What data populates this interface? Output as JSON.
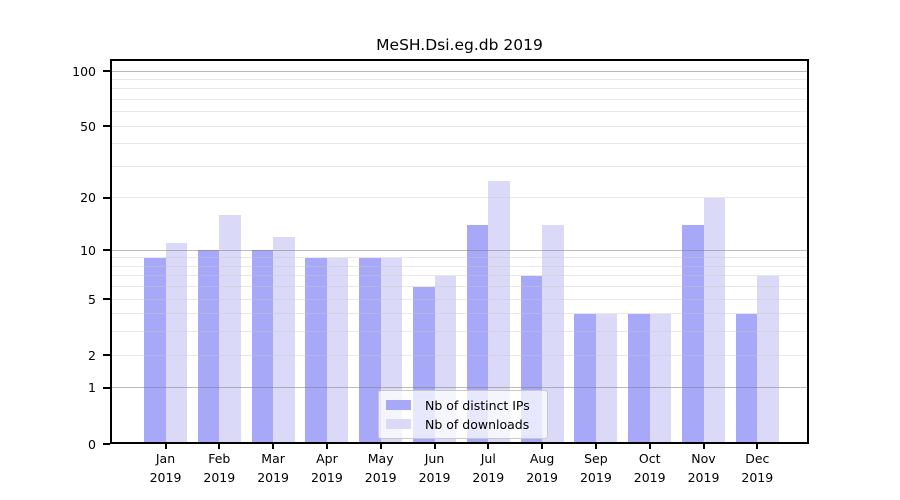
{
  "title": "MeSH.Dsi.eg.db 2019",
  "chart_data": {
    "type": "bar",
    "title": "MeSH.Dsi.eg.db 2019",
    "xlabel": "",
    "ylabel": "",
    "scale": "log1p",
    "ylim": [
      0,
      100
    ],
    "yticks": [
      0,
      1,
      2,
      5,
      10,
      20,
      50,
      100
    ],
    "grid": "on",
    "grid_minor_color": "rgba(200,200,200,0.42)",
    "grid_major_color": "rgba(120,120,120,0.50)",
    "legend_position": "bottom-center-inside",
    "year": "2019",
    "categories": [
      "Jan",
      "Feb",
      "Mar",
      "Apr",
      "May",
      "Jun",
      "Jul",
      "Aug",
      "Sep",
      "Oct",
      "Nov",
      "Dec"
    ],
    "series": [
      {
        "name": "Nb of distinct IPs",
        "color": "#a8a8f8",
        "values": [
          9,
          10,
          10,
          9,
          9,
          6,
          14,
          7,
          4,
          4,
          14,
          4
        ]
      },
      {
        "name": "Nb of downloads",
        "color": "#dadaf8",
        "values": [
          11,
          16,
          12,
          9,
          9,
          7,
          25,
          14,
          4,
          4,
          20,
          7
        ]
      }
    ]
  }
}
